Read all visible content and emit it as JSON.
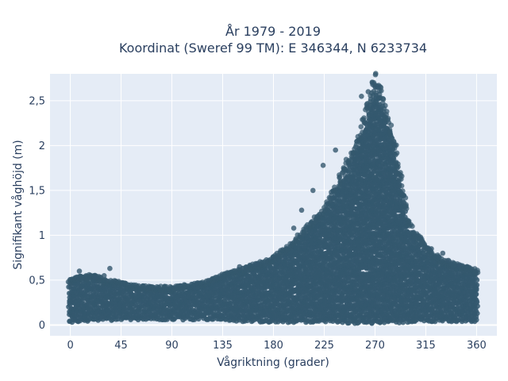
{
  "chart_data": {
    "type": "scatter",
    "title_line1": "År 1979 - 2019",
    "title_line2": "Koordinat (Sweref 99 TM): E 346344, N 6233734",
    "xlabel": "Vågriktning (grader)",
    "ylabel": "Signifikant våghöjd (m)",
    "xlim": [
      -18,
      378
    ],
    "ylim": [
      -0.12,
      2.8
    ],
    "x_ticks": [
      0,
      45,
      90,
      135,
      180,
      225,
      270,
      315,
      360
    ],
    "x_tick_labels": [
      "0",
      "45",
      "90",
      "135",
      "180",
      "225",
      "270",
      "315",
      "360"
    ],
    "y_ticks": [
      0,
      0.5,
      1,
      1.5,
      2,
      2.5
    ],
    "y_tick_labels": [
      "0",
      "0,5",
      "1",
      "1,5",
      "2",
      "2,5"
    ],
    "grid": true,
    "marker_color": "#34586e",
    "plot_background": "#e5ecf6",
    "point_density": {
      "description_unused": null,
      "direction": [
        0,
        10,
        20,
        30,
        45,
        60,
        90,
        120,
        135,
        150,
        180,
        200,
        225,
        240,
        255,
        265,
        270,
        275,
        285,
        295,
        300,
        315,
        330,
        345,
        360
      ],
      "lower_height": [
        0.05,
        0.05,
        0.07,
        0.07,
        0.08,
        0.08,
        0.08,
        0.08,
        0.08,
        0.06,
        0.05,
        0.05,
        0.05,
        0.04,
        0.04,
        0.04,
        0.04,
        0.04,
        0.04,
        0.05,
        0.05,
        0.06,
        0.06,
        0.06,
        0.06
      ],
      "upper_height": [
        0.45,
        0.48,
        0.5,
        0.45,
        0.42,
        0.38,
        0.37,
        0.42,
        0.5,
        0.55,
        0.68,
        0.88,
        1.2,
        1.55,
        1.95,
        2.35,
        2.6,
        2.45,
        2.05,
        1.4,
        1.05,
        0.8,
        0.65,
        0.6,
        0.55
      ]
    },
    "outliers": [
      {
        "x": 8,
        "y": 0.6
      },
      {
        "x": 35,
        "y": 0.63
      },
      {
        "x": 30,
        "y": 0.55
      },
      {
        "x": 22,
        "y": 0.53
      },
      {
        "x": 345,
        "y": 0.67
      },
      {
        "x": 335,
        "y": 0.72
      },
      {
        "x": 268,
        "y": 2.68
      },
      {
        "x": 272,
        "y": 2.65
      },
      {
        "x": 264,
        "y": 2.6
      },
      {
        "x": 258,
        "y": 2.55
      },
      {
        "x": 224,
        "y": 1.78
      },
      {
        "x": 235,
        "y": 1.95
      },
      {
        "x": 215,
        "y": 1.5
      },
      {
        "x": 205,
        "y": 1.28
      },
      {
        "x": 198,
        "y": 1.08
      },
      {
        "x": 330,
        "y": 0.8
      },
      {
        "x": 320,
        "y": 0.85
      },
      {
        "x": 150,
        "y": 0.65
      },
      {
        "x": 165,
        "y": 0.68
      }
    ]
  }
}
